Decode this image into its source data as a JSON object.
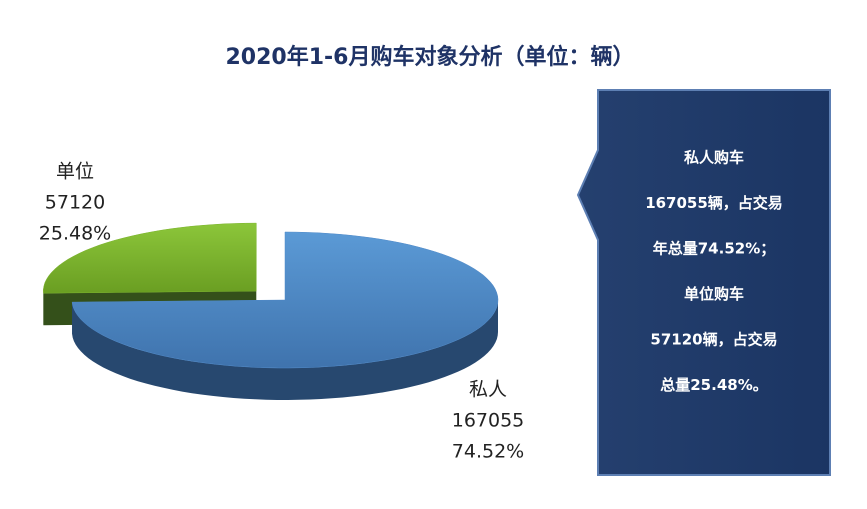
{
  "chart_data": {
    "type": "pie3d",
    "title": "2020年1-6月购车对象分析（单位：辆）",
    "categories": [
      "私人",
      "单位"
    ],
    "values": [
      167055,
      57120
    ],
    "percentages": [
      74.52,
      25.48
    ],
    "percentage_labels": [
      "74.52%",
      "25.48%"
    ],
    "colors": [
      "#4f89c8",
      "#7ab32a"
    ],
    "side_colors": [
      "#27486f",
      "#34501a"
    ],
    "exploded": [
      false,
      true
    ],
    "annotation": {
      "lines": [
        "私人购车",
        "167055辆，占交易",
        "年总量74.52%；",
        "单位购车",
        "57120辆，占交易",
        "总量25.48%。"
      ]
    }
  }
}
